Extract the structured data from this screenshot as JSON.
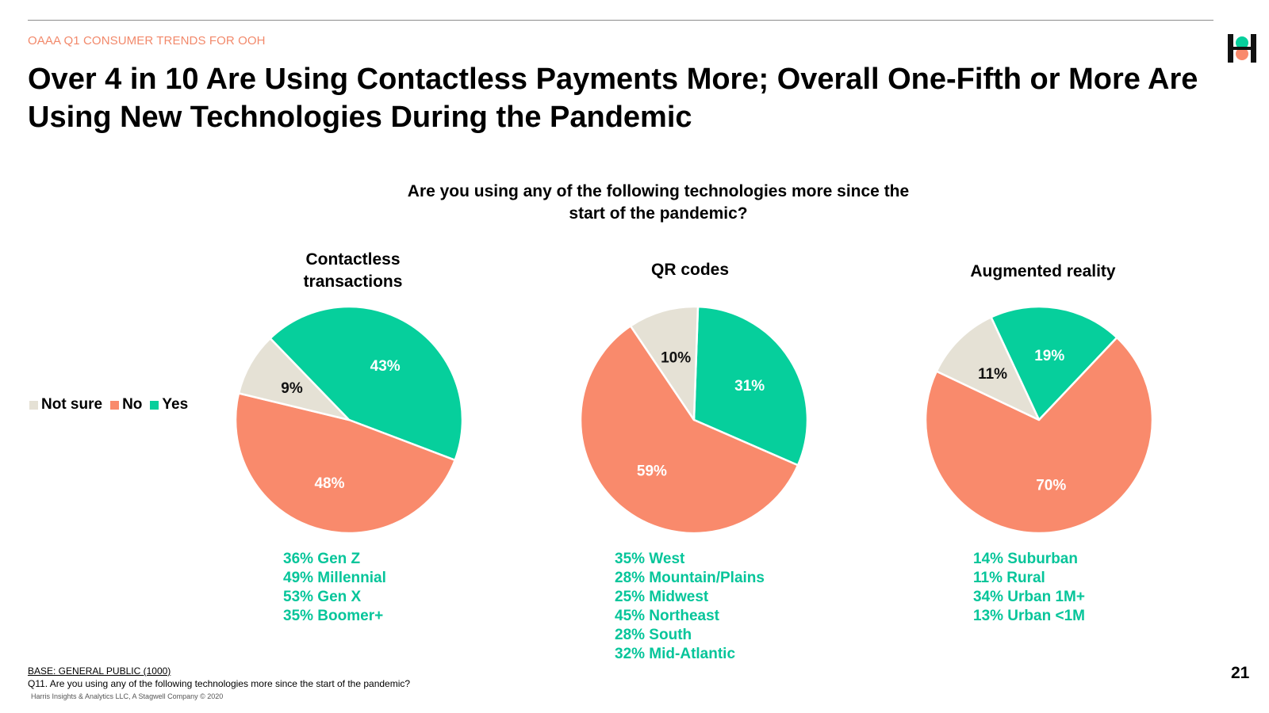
{
  "header": {
    "kicker": "OAAA Q1 CONSUMER TRENDS FOR OOH",
    "title": "Over 4 in 10 Are Using Contactless Payments More; Overall One-Fifth or More Are Using New Technologies During the Pandemic"
  },
  "question": "Are you using any of the following technologies more since the start of the pandemic?",
  "legend": [
    {
      "label": "Not sure",
      "color": "#e5e1d5"
    },
    {
      "label": "No",
      "color": "#f98a6c"
    },
    {
      "label": "Yes",
      "color": "#06cf9c"
    }
  ],
  "chart_data": [
    {
      "type": "pie",
      "title": "Contactless transactions",
      "slices": [
        {
          "label": "Yes",
          "value": 43,
          "text": "43%"
        },
        {
          "label": "No",
          "value": 48,
          "text": "48%"
        },
        {
          "label": "Not sure",
          "value": 9,
          "text": "9%"
        }
      ]
    },
    {
      "type": "pie",
      "title": "QR codes",
      "slices": [
        {
          "label": "Yes",
          "value": 31,
          "text": "31%"
        },
        {
          "label": "No",
          "value": 59,
          "text": "59%"
        },
        {
          "label": "Not sure",
          "value": 10,
          "text": "10%"
        }
      ]
    },
    {
      "type": "pie",
      "title": "Augmented reality",
      "slices": [
        {
          "label": "Yes",
          "value": 19,
          "text": "19%"
        },
        {
          "label": "No",
          "value": 70,
          "text": "70%"
        },
        {
          "label": "Not sure",
          "value": 11,
          "text": "11%"
        }
      ]
    }
  ],
  "notes": [
    [
      "36% Gen Z",
      "49% Millennial",
      "53% Gen X",
      "35% Boomer+"
    ],
    [
      "35% West",
      "28% Mountain/Plains",
      "25% Midwest",
      "45% Northeast",
      "28% South",
      "32% Mid-Atlantic"
    ],
    [
      "14% Suburban",
      "11% Rural",
      "34% Urban 1M+",
      "13% Urban <1M"
    ]
  ],
  "footer": {
    "base": "BASE: GENERAL PUBLIC (1000)",
    "question_note": "Q11. Are you using any of the following technologies more since the start of the pandemic?",
    "copyright": "Harris Insights & Analytics LLC, A Stagwell Company © 2020"
  },
  "page_number": "21"
}
